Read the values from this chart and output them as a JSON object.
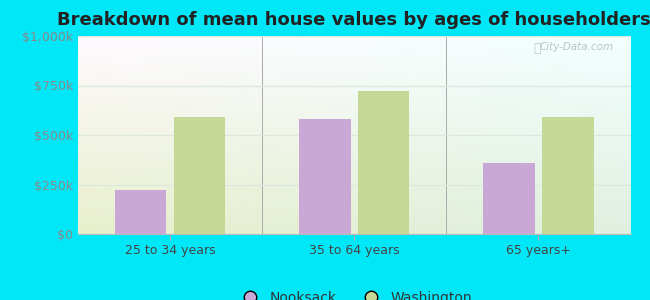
{
  "title": "Breakdown of mean house values by ages of householders",
  "categories": [
    "25 to 34 years",
    "35 to 64 years",
    "65 years+"
  ],
  "nooksack_values": [
    220000,
    580000,
    360000
  ],
  "washington_values": [
    590000,
    720000,
    590000
  ],
  "ylim": [
    0,
    1000000
  ],
  "yticks": [
    0,
    250000,
    500000,
    750000,
    1000000
  ],
  "ytick_labels": [
    "$0",
    "$250k",
    "$500k",
    "$750k",
    "$1,000k"
  ],
  "bar_color_nooksack": "#c9a8d5",
  "bar_color_washington": "#c5d896",
  "background_outer": "#00e8f8",
  "legend_label_nooksack": "Nooksack",
  "legend_label_washington": "Washington",
  "title_fontsize": 13,
  "tick_fontsize": 9,
  "legend_fontsize": 10,
  "bar_width": 0.28,
  "watermark": "City-Data.com",
  "grid_color": "#e0e8e0",
  "divider_color": "#aaaaaa"
}
